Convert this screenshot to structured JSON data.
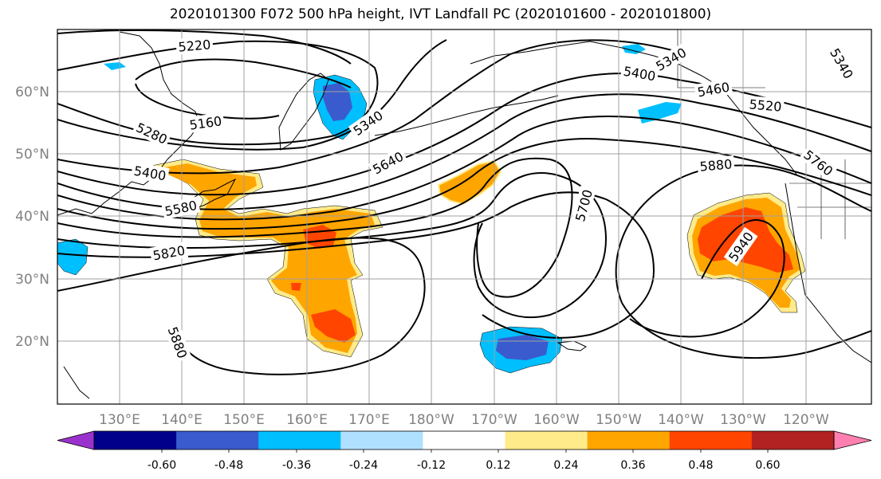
{
  "title": "2020101300 F072 500 hPa height, IVT Landfall PC (2020101600 - 2020101800)",
  "lat_labels": [
    "60°N",
    "50°N",
    "40°N",
    "30°N",
    "20°N"
  ],
  "lon_labels": [
    "130°E",
    "140°E",
    "150°E",
    "160°E",
    "170°E",
    "180°W",
    "170°W",
    "160°W",
    "150°W",
    "140°W",
    "130°W",
    "120°W"
  ],
  "contour_labels": [
    "5220",
    "5160",
    "5280",
    "5400",
    "5340",
    "5400",
    "5340",
    "5460",
    "5520",
    "5340",
    "5640",
    "5880",
    "5760",
    "5580",
    "5820",
    "5700",
    "5940",
    "5880"
  ],
  "colorbar": {
    "tick_labels": [
      "-0.60",
      "-0.48",
      "-0.36",
      "-0.24",
      "-0.12",
      "0.12",
      "0.24",
      "0.36",
      "0.48",
      "0.60"
    ],
    "colors": [
      "#9932cc",
      "#00008b",
      "#3a5bcd",
      "#00bfff",
      "#b0e0ff",
      "#ffffff",
      "#ffeb8a",
      "#ffa500",
      "#ff4500",
      "#b22222",
      "#ff80b0"
    ]
  },
  "colors": {
    "grid": "#a0a0a0",
    "contour": "#000000",
    "frame": "#000000"
  }
}
